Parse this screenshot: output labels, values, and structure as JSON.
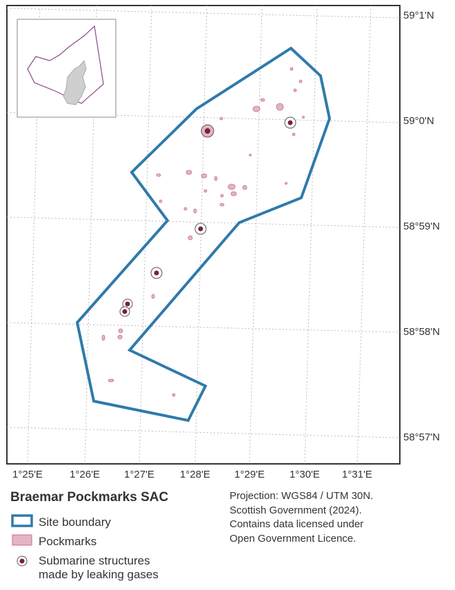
{
  "map": {
    "lat_labels": [
      "59°1'N",
      "59°0'N",
      "58°59'N",
      "58°58'N",
      "58°57'N"
    ],
    "lon_labels": [
      "1°25'E",
      "1°26'E",
      "1°27'E",
      "1°28'E",
      "1°29'E",
      "1°30'E",
      "1°31'E"
    ]
  },
  "legend": {
    "title": "Braemar Pockmarks SAC",
    "items": [
      "Site boundary",
      "Pockmarks"
    ],
    "gas_item_lines": [
      "Submarine structures",
      "made by leaking gases"
    ]
  },
  "attribution": [
    "Projection: WGS84 / UTM 30N.",
    "Scottish Government (2024).",
    "Contains data licensed under",
    "Open Government Licence."
  ]
}
